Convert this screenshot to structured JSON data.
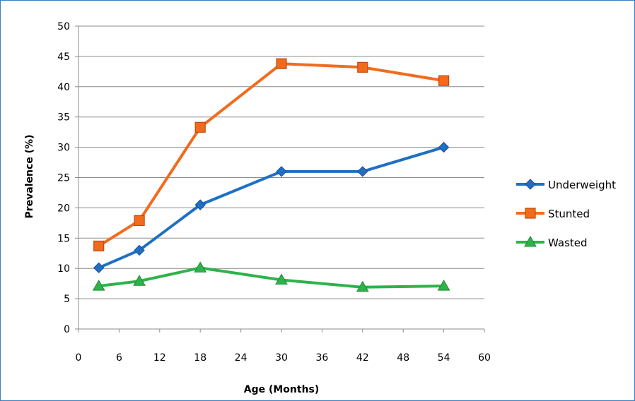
{
  "chart_data": {
    "type": "line",
    "xlabel": "Age (Months)",
    "ylabel": "Prevalence (%)",
    "xlim": [
      0,
      60
    ],
    "ylim": [
      0,
      50
    ],
    "xticks": [
      0,
      6,
      12,
      18,
      24,
      30,
      36,
      42,
      48,
      54,
      60
    ],
    "yticks": [
      0,
      5,
      10,
      15,
      20,
      25,
      30,
      35,
      40,
      45,
      50
    ],
    "grid": "horizontal",
    "legend_position": "right",
    "x": [
      3,
      9,
      18,
      30,
      42,
      54
    ],
    "series": [
      {
        "name": "Underweight",
        "color": "#1f6fc5",
        "marker": "diamond",
        "values": [
          10.1,
          13.0,
          20.5,
          26.0,
          26.0,
          30.0
        ]
      },
      {
        "name": "Stunted",
        "color": "#f26b1d",
        "marker": "square",
        "values": [
          13.7,
          17.9,
          33.3,
          43.8,
          43.2,
          41.0
        ]
      },
      {
        "name": "Wasted",
        "color": "#2db34a",
        "marker": "triangle",
        "values": [
          7.1,
          7.9,
          10.1,
          8.1,
          6.9,
          7.1
        ]
      }
    ]
  }
}
